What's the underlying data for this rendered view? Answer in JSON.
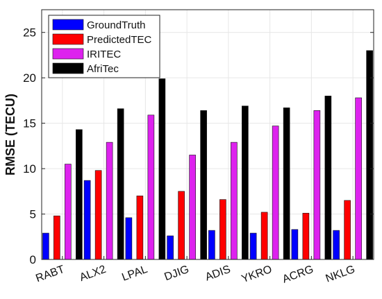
{
  "chart_data": {
    "type": "bar",
    "title": "",
    "xlabel": "",
    "ylabel": "RMSE (TECU)",
    "ylim": [
      0,
      27.5
    ],
    "yticks": [
      0,
      5,
      10,
      15,
      20,
      25
    ],
    "grid": true,
    "legend_position": "top-left",
    "categories": [
      "RABT",
      "ALX2",
      "LPAL",
      "DJIG",
      "ADIS",
      "YKRO",
      "ACRG",
      "NKLG"
    ],
    "series": [
      {
        "name": "GroundTruth",
        "color": "#0000ff",
        "values": [
          2.9,
          8.7,
          4.6,
          2.6,
          3.2,
          2.9,
          3.3,
          3.2
        ]
      },
      {
        "name": "PredictedTEC",
        "color": "#ff0000",
        "values": [
          4.8,
          9.8,
          7.0,
          7.5,
          6.6,
          5.2,
          5.1,
          6.5
        ]
      },
      {
        "name": "IRITEC",
        "color": "#dd22ee",
        "values": [
          10.5,
          12.9,
          15.9,
          11.5,
          12.9,
          14.7,
          16.4,
          17.8
        ]
      },
      {
        "name": "AfriTec",
        "color": "#000000",
        "values": [
          14.3,
          16.6,
          19.9,
          16.4,
          16.9,
          16.7,
          18.0,
          23.0
        ]
      }
    ]
  }
}
